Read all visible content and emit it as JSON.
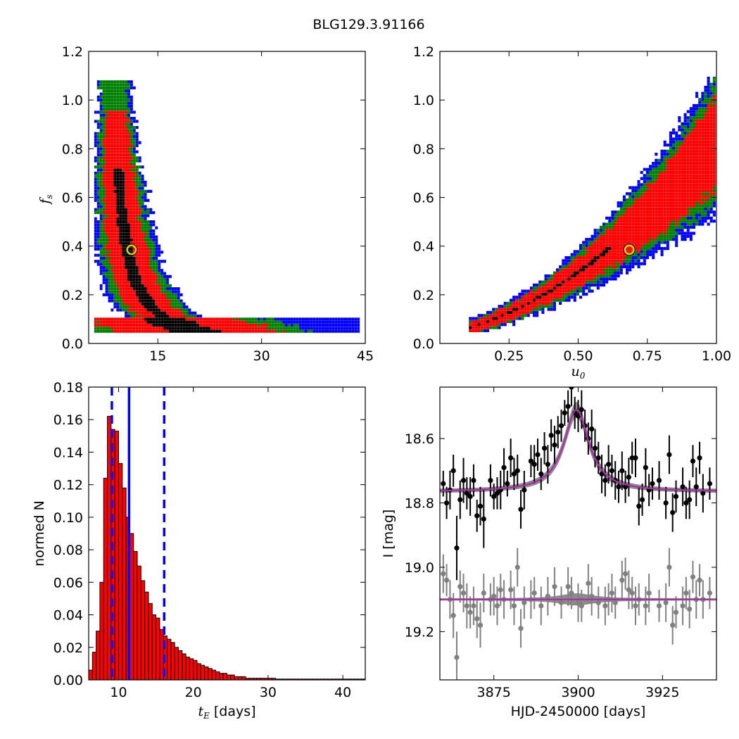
{
  "figure_title": "BLG129.3.91166",
  "chart_data": [
    {
      "type": "heatmap",
      "panel": "top-left",
      "xlabel": "",
      "ylabel": "f_s",
      "ylabel_main": "f",
      "ylabel_sub": "s",
      "xlim": [
        5,
        45
      ],
      "ylim": [
        0,
        1.2
      ],
      "xticks": [
        15,
        30,
        45
      ],
      "xtick_labels": [
        "15",
        "30",
        "45"
      ],
      "yticks": [
        0,
        0.2,
        0.4,
        0.6,
        0.8,
        1.0,
        1.2
      ],
      "ytick_labels": [
        "0.0",
        "0.2",
        "0.4",
        "0.6",
        "0.8",
        "1.0",
        "1.2"
      ],
      "contour_colors": [
        "#0000ff",
        "#008000",
        "#ff0000",
        "#000000"
      ],
      "best_fit": {
        "x": 11.2,
        "y": 0.385,
        "color": "#d4d400"
      }
    },
    {
      "type": "heatmap",
      "panel": "top-right",
      "xlabel": "u_0",
      "xlabel_main": "u",
      "xlabel_sub": "0",
      "ylabel": "",
      "xlim": [
        0,
        1.0
      ],
      "ylim": [
        0,
        1.2
      ],
      "xticks": [
        0.25,
        0.5,
        0.75,
        1.0
      ],
      "xtick_labels": [
        "0.25",
        "0.50",
        "0.75",
        "1.00"
      ],
      "yticks": [
        0,
        0.2,
        0.4,
        0.6,
        0.8,
        1.0,
        1.2
      ],
      "ytick_labels": [
        "0.0",
        "0.2",
        "0.4",
        "0.6",
        "0.8",
        "1.0",
        "1.2"
      ],
      "contour_colors": [
        "#0000ff",
        "#008000",
        "#ff0000",
        "#000000"
      ],
      "best_fit": {
        "x": 0.685,
        "y": 0.385,
        "color": "#d4d400"
      }
    },
    {
      "type": "bar",
      "panel": "bottom-left",
      "xlabel_main": "t",
      "xlabel_sub": "E",
      "xlabel_rest": " [days]",
      "ylabel": "normed N",
      "xlim": [
        6,
        43
      ],
      "ylim": [
        0,
        0.18
      ],
      "xticks": [
        10,
        20,
        30,
        40
      ],
      "xtick_labels": [
        "10",
        "20",
        "30",
        "40"
      ],
      "yticks": [
        0,
        0.02,
        0.04,
        0.06,
        0.08,
        0.1,
        0.12,
        0.14,
        0.16,
        0.18
      ],
      "ytick_labels": [
        "0.00",
        "0.02",
        "0.04",
        "0.06",
        "0.08",
        "0.10",
        "0.12",
        "0.14",
        "0.16",
        "0.18"
      ],
      "bin_start": 6.0,
      "bin_width": 0.5,
      "values": [
        0.006,
        0.017,
        0.03,
        0.06,
        0.124,
        0.162,
        0.154,
        0.153,
        0.133,
        0.118,
        0.1,
        0.09,
        0.079,
        0.07,
        0.061,
        0.054,
        0.047,
        0.04,
        0.038,
        0.031,
        0.027,
        0.025,
        0.023,
        0.02,
        0.018,
        0.016,
        0.014,
        0.013,
        0.012,
        0.01,
        0.009,
        0.008,
        0.007,
        0.006,
        0.005,
        0.004,
        0.004,
        0.003,
        0.003,
        0.002,
        0.002,
        0.002,
        0.001,
        0.001,
        0.001,
        0.001,
        0.001,
        0.001,
        0.001,
        0.001,
        0.0005,
        0.0005,
        0.0005,
        0.0005,
        0.0005,
        0.0005,
        0.0005,
        0.0005,
        0.0005,
        0.0005,
        0.0005,
        0.0005,
        0.0005,
        0.0005,
        0.0005,
        0.0005,
        0.0005,
        0.0005,
        0.0005,
        0.0005,
        0.0005,
        0.0005,
        0.0005,
        0.0005
      ],
      "bar_color": "#ff0000",
      "lines": [
        {
          "x": 9.1,
          "style": "dashed",
          "color": "#0000ff"
        },
        {
          "x": 11.4,
          "style": "solid",
          "color": "#0000ff"
        },
        {
          "x": 16.1,
          "style": "dashed",
          "color": "#0000ff"
        }
      ]
    },
    {
      "type": "scatter",
      "panel": "bottom-right",
      "xlabel": "HJD-2450000 [days]",
      "ylabel": "I [mag]",
      "xlim": [
        3859,
        3941
      ],
      "ylim": [
        19.35,
        18.44
      ],
      "xticks": [
        3875,
        3900,
        3925
      ],
      "xtick_labels": [
        "3875",
        "3900",
        "3925"
      ],
      "yticks": [
        18.6,
        18.8,
        19.0,
        19.2
      ],
      "ytick_labels": [
        "18.6",
        "18.8",
        "19.0",
        "19.2"
      ],
      "model": {
        "t0": 3899.5,
        "base": 18.765,
        "peak": 18.51,
        "tau": 4.5,
        "color": "#aa2aaa"
      },
      "residual_baseline": 19.1,
      "series": [
        {
          "role": "data",
          "color": "#000000",
          "points": [
            [
              3860,
              18.74,
              0.04
            ],
            [
              3861,
              18.8,
              0.05
            ],
            [
              3862,
              18.76,
              0.06
            ],
            [
              3863,
              18.7,
              0.05
            ],
            [
              3864,
              18.94,
              0.1
            ],
            [
              3865,
              18.79,
              0.06
            ],
            [
              3866,
              18.73,
              0.07
            ],
            [
              3867,
              18.77,
              0.05
            ],
            [
              3868,
              18.78,
              0.06
            ],
            [
              3869,
              18.73,
              0.05
            ],
            [
              3870,
              18.84,
              0.05
            ],
            [
              3871,
              18.81,
              0.06
            ],
            [
              3872,
              18.85,
              0.09
            ],
            [
              3874,
              18.73,
              0.05
            ],
            [
              3875,
              18.78,
              0.04
            ],
            [
              3876,
              18.77,
              0.05
            ],
            [
              3877,
              18.76,
              0.06
            ],
            [
              3878,
              18.69,
              0.06
            ],
            [
              3879,
              18.74,
              0.04
            ],
            [
              3880,
              18.66,
              0.06
            ],
            [
              3881,
              18.71,
              0.05
            ],
            [
              3882,
              18.7,
              0.05
            ],
            [
              3883,
              18.82,
              0.06
            ],
            [
              3884,
              18.76,
              0.06
            ],
            [
              3886,
              18.67,
              0.05
            ],
            [
              3887,
              18.68,
              0.06
            ],
            [
              3888,
              18.65,
              0.05
            ],
            [
              3889,
              18.71,
              0.05
            ],
            [
              3890,
              18.63,
              0.05
            ],
            [
              3891,
              18.68,
              0.06
            ],
            [
              3892,
              18.59,
              0.05
            ],
            [
              3893,
              18.62,
              0.06
            ],
            [
              3894,
              18.58,
              0.05
            ],
            [
              3895,
              18.56,
              0.05
            ],
            [
              3896,
              18.52,
              0.04
            ],
            [
              3897,
              18.5,
              0.05
            ],
            [
              3898,
              18.44,
              0.06
            ],
            [
              3899,
              18.52,
              0.05
            ],
            [
              3900,
              18.53,
              0.05
            ],
            [
              3901,
              18.51,
              0.06
            ],
            [
              3902,
              18.56,
              0.05
            ],
            [
              3903,
              18.6,
              0.05
            ],
            [
              3904,
              18.57,
              0.06
            ],
            [
              3905,
              18.63,
              0.06
            ],
            [
              3906,
              18.66,
              0.05
            ],
            [
              3907,
              18.71,
              0.06
            ],
            [
              3908,
              18.73,
              0.05
            ],
            [
              3909,
              18.68,
              0.06
            ],
            [
              3910,
              18.7,
              0.05
            ],
            [
              3911,
              18.73,
              0.06
            ],
            [
              3912,
              18.75,
              0.05
            ],
            [
              3913,
              18.7,
              0.06
            ],
            [
              3914,
              18.75,
              0.05
            ],
            [
              3915,
              18.72,
              0.06
            ],
            [
              3916,
              18.66,
              0.05
            ],
            [
              3917,
              18.66,
              0.06
            ],
            [
              3918,
              18.81,
              0.06
            ],
            [
              3919,
              18.79,
              0.05
            ],
            [
              3920,
              18.69,
              0.06
            ],
            [
              3921,
              18.76,
              0.05
            ],
            [
              3922,
              18.74,
              0.05
            ],
            [
              3924,
              18.73,
              0.06
            ],
            [
              3926,
              18.8,
              0.05
            ],
            [
              3927,
              18.65,
              0.06
            ],
            [
              3928,
              18.83,
              0.06
            ],
            [
              3929,
              18.78,
              0.05
            ],
            [
              3931,
              18.75,
              0.06
            ],
            [
              3932,
              18.8,
              0.05
            ],
            [
              3933,
              18.79,
              0.06
            ],
            [
              3934,
              18.67,
              0.05
            ],
            [
              3935,
              18.75,
              0.06
            ],
            [
              3936,
              18.66,
              0.05
            ],
            [
              3937,
              18.77,
              0.06
            ],
            [
              3939,
              18.74,
              0.05
            ]
          ]
        },
        {
          "role": "residuals",
          "color": "#808080",
          "points": [
            [
              3860,
              19.02,
              0.06
            ],
            [
              3861,
              19.04,
              0.05
            ],
            [
              3862,
              19.1,
              0.06
            ],
            [
              3863,
              19.15,
              0.07
            ],
            [
              3864,
              19.28,
              0.08
            ],
            [
              3865,
              19.06,
              0.05
            ],
            [
              3866,
              19.08,
              0.06
            ],
            [
              3867,
              19.12,
              0.07
            ],
            [
              3868,
              19.14,
              0.05
            ],
            [
              3869,
              19.12,
              0.06
            ],
            [
              3870,
              19.16,
              0.06
            ],
            [
              3871,
              19.18,
              0.07
            ],
            [
              3872,
              19.08,
              0.06
            ],
            [
              3874,
              19.1,
              0.05
            ],
            [
              3875,
              19.09,
              0.06
            ],
            [
              3876,
              19.12,
              0.06
            ],
            [
              3877,
              19.07,
              0.05
            ],
            [
              3878,
              19.1,
              0.06
            ],
            [
              3880,
              19.07,
              0.06
            ],
            [
              3881,
              19.12,
              0.06
            ],
            [
              3882,
              19.0,
              0.06
            ],
            [
              3883,
              19.19,
              0.06
            ],
            [
              3884,
              19.11,
              0.05
            ],
            [
              3886,
              19.1,
              0.06
            ],
            [
              3887,
              19.08,
              0.05
            ],
            [
              3889,
              19.12,
              0.06
            ],
            [
              3891,
              19.09,
              0.06
            ],
            [
              3893,
              19.06,
              0.06
            ],
            [
              3895,
              19.11,
              0.05
            ],
            [
              3897,
              19.06,
              0.06
            ],
            [
              3898,
              19.08,
              0.05
            ],
            [
              3900,
              19.11,
              0.06
            ],
            [
              3901,
              19.12,
              0.05
            ],
            [
              3903,
              19.05,
              0.06
            ],
            [
              3904,
              19.09,
              0.06
            ],
            [
              3906,
              19.11,
              0.05
            ],
            [
              3908,
              19.12,
              0.06
            ],
            [
              3909,
              19.1,
              0.05
            ],
            [
              3910,
              19.08,
              0.06
            ],
            [
              3911,
              19.11,
              0.05
            ],
            [
              3913,
              19.04,
              0.06
            ],
            [
              3914,
              19.02,
              0.05
            ],
            [
              3915,
              19.07,
              0.06
            ],
            [
              3916,
              19.08,
              0.05
            ],
            [
              3917,
              19.12,
              0.06
            ],
            [
              3918,
              19.1,
              0.05
            ],
            [
              3920,
              19.12,
              0.06
            ],
            [
              3921,
              19.08,
              0.06
            ],
            [
              3924,
              19.12,
              0.05
            ],
            [
              3926,
              19.11,
              0.06
            ],
            [
              3927,
              19.0,
              0.06
            ],
            [
              3928,
              19.18,
              0.06
            ],
            [
              3929,
              19.14,
              0.05
            ],
            [
              3931,
              19.12,
              0.06
            ],
            [
              3932,
              19.08,
              0.05
            ],
            [
              3933,
              19.13,
              0.06
            ],
            [
              3934,
              19.03,
              0.05
            ],
            [
              3935,
              19.1,
              0.06
            ],
            [
              3936,
              19.04,
              0.05
            ],
            [
              3937,
              19.1,
              0.06
            ],
            [
              3939,
              19.08,
              0.05
            ]
          ]
        }
      ]
    }
  ]
}
